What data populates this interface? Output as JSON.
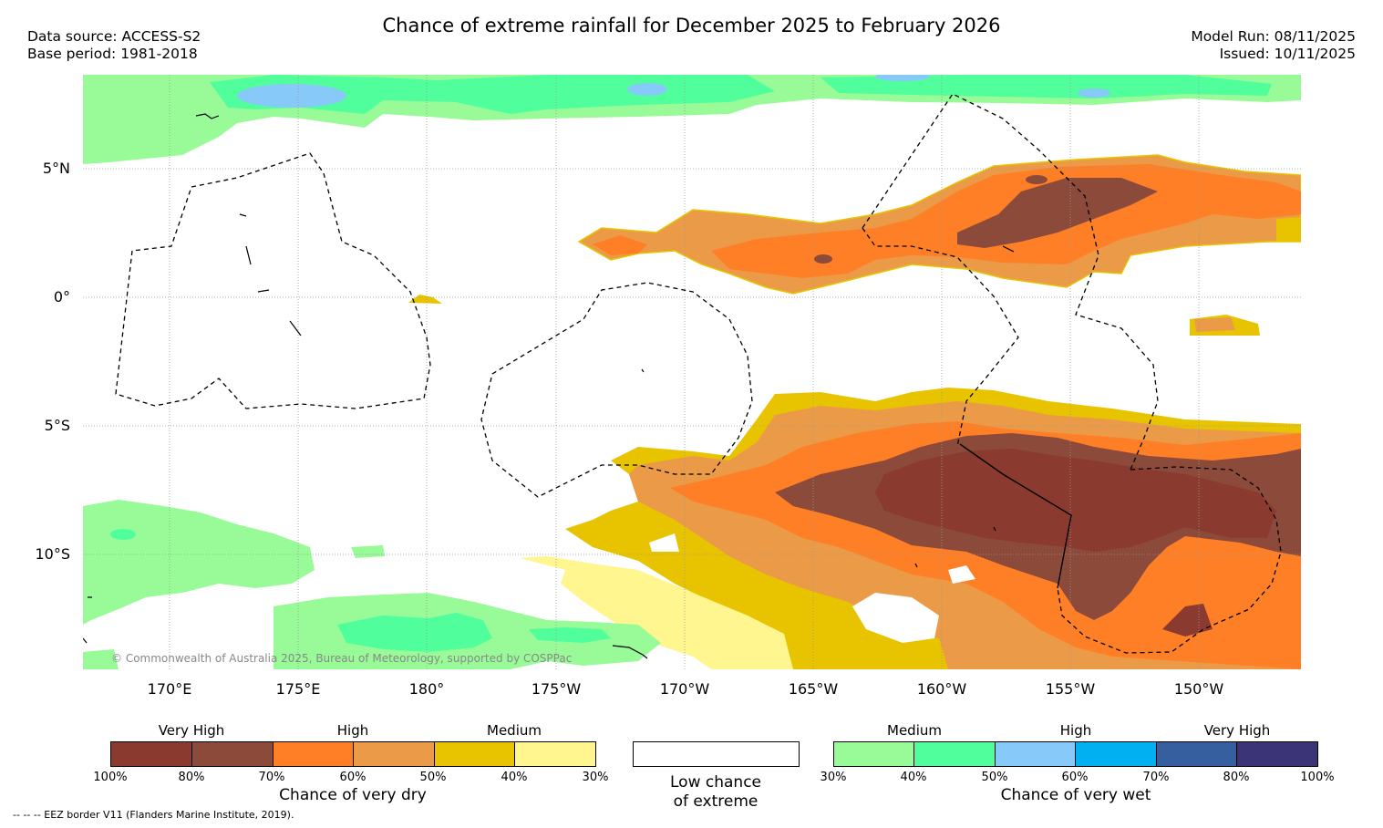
{
  "title": "Chance of extreme rainfall for December 2025 to February 2026",
  "meta_left": {
    "data_source": "Data source: ACCESS-S2",
    "base_period": "Base period: 1981-2018"
  },
  "meta_right": {
    "model_run": "Model Run: 08/11/2025",
    "issued": "Issued: 10/11/2025"
  },
  "map": {
    "lat_labels": [
      "5°N",
      "0°",
      "5°S",
      "10°S"
    ],
    "lon_labels": [
      "170°E",
      "175°E",
      "180°",
      "175°W",
      "170°W",
      "165°W",
      "160°W",
      "155°W",
      "150°W"
    ],
    "copyright": "© Commonwealth of Australia 2025, Bureau of Meteorology, supported by COSPPac"
  },
  "legend": {
    "dry": {
      "headings": [
        "Very High",
        "High",
        "Medium"
      ],
      "percents": [
        "100%",
        "80%",
        "70%",
        "60%",
        "50%",
        "40%",
        "30%"
      ],
      "colors": [
        "#8b3a30",
        "#8b4a3a",
        "#ff7f27",
        "#eb9a48",
        "#e8c400",
        "#fff68f"
      ],
      "caption": "Chance of very dry"
    },
    "neutral": {
      "caption_line1": "Low chance",
      "caption_line2": "of extreme",
      "color": "#ffffff"
    },
    "wet": {
      "headings": [
        "Medium",
        "High",
        "Very High"
      ],
      "percents": [
        "30%",
        "40%",
        "50%",
        "60%",
        "70%",
        "80%",
        "100%"
      ],
      "colors": [
        "#98fb98",
        "#50ff9c",
        "#87cafa",
        "#00b0f0",
        "#355f9f",
        "#3b3577"
      ],
      "caption": "Chance of very wet"
    }
  },
  "footnote": "-- -- -- EEZ border V11 (Flanders Marine Institute, 2019)."
}
